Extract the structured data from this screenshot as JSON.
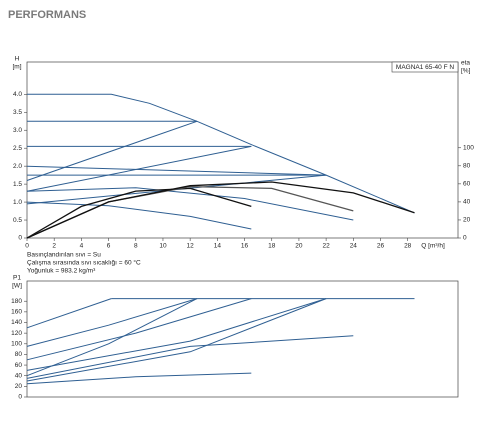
{
  "header": {
    "title": "PERFORMANS"
  },
  "chart_data": [
    {
      "type": "line",
      "y_label": "H",
      "y_unit": "[m]",
      "y2_label": "eta",
      "y2_unit": "[%]",
      "x_label": "Q [m³/h]",
      "legend_text": "MAGNA1 65-40 F N",
      "notes": [
        "Basınçlandırılan sıvı = Su",
        "Çalışma sırasında sıvı sıcaklığı = 60 °C",
        "Yoğunluk = 983.2 kg/m³"
      ],
      "xlim": [
        0,
        31.7
      ],
      "ylim": [
        0,
        4.9
      ],
      "y2lim": [
        0,
        195
      ],
      "xticks": [
        0,
        2,
        4,
        6,
        8,
        10,
        12,
        14,
        16,
        18,
        20,
        22,
        24,
        26,
        28
      ],
      "yticks": [
        0,
        0.5,
        {
          "value": 1,
          "label": "1.0"
        },
        1.5,
        {
          "value": 2,
          "label": "2.0"
        },
        2.5,
        {
          "value": 3,
          "label": "3.0"
        },
        3.5,
        {
          "value": 4,
          "label": "4.0"
        }
      ],
      "y2ticks": [
        0,
        20,
        40,
        60,
        80,
        100
      ],
      "series": [
        {
          "color": "#2f5f92",
          "x": [
            0,
            6.2,
            9,
            12.5,
            16.5,
            22,
            28.5
          ],
          "values": [
            4.0,
            4.0,
            3.75,
            3.25,
            2.6,
            1.75,
            0.7
          ]
        },
        {
          "color": "#2f5f92",
          "x": [
            0,
            12.5
          ],
          "values": [
            3.25,
            3.25
          ]
        },
        {
          "color": "#2f5f92",
          "x": [
            0,
            16.5
          ],
          "values": [
            2.55,
            2.55
          ]
        },
        {
          "color": "#2f5f92",
          "x": [
            0,
            22
          ],
          "values": [
            1.75,
            1.75
          ]
        },
        {
          "color": "#2f5f92",
          "x": [
            0,
            22
          ],
          "values": [
            2.0,
            1.75
          ]
        },
        {
          "color": "#2f5f92",
          "x": [
            0,
            12.5
          ],
          "values": [
            1.6,
            3.25
          ]
        },
        {
          "color": "#2f5f92",
          "x": [
            0,
            16.5
          ],
          "values": [
            1.3,
            2.55
          ]
        },
        {
          "color": "#2f5f92",
          "x": [
            0,
            22
          ],
          "values": [
            0.95,
            1.75
          ]
        },
        {
          "color": "#2f5f92",
          "x": [
            0,
            6,
            12,
            16.5
          ],
          "values": [
            1.0,
            0.9,
            0.6,
            0.25
          ]
        },
        {
          "color": "#2f5f92",
          "x": [
            0,
            8,
            16,
            24
          ],
          "values": [
            1.3,
            1.4,
            1.1,
            0.5
          ]
        },
        {
          "color": "#111111",
          "axis": "y2",
          "x": [
            0,
            4,
            8,
            12,
            16.5
          ],
          "values": [
            0,
            35,
            52,
            55,
            35
          ]
        },
        {
          "color": "#555555",
          "axis": "y2",
          "x": [
            0,
            6,
            12,
            18,
            24
          ],
          "values": [
            0,
            40,
            57,
            55,
            30
          ]
        },
        {
          "color": "#111111",
          "axis": "y2",
          "x": [
            0,
            6,
            12,
            18,
            24,
            28.5
          ],
          "values": [
            0,
            40,
            58,
            62,
            50,
            28
          ]
        }
      ]
    },
    {
      "type": "line",
      "y_label": "P1",
      "y_unit": "[W]",
      "xlim": [
        0,
        31.7
      ],
      "ylim": [
        0,
        218
      ],
      "yticks": [
        0,
        20,
        40,
        60,
        80,
        100,
        120,
        140,
        160,
        180
      ],
      "series": [
        {
          "color": "#2f5f92",
          "x": [
            6.2,
            28.5
          ],
          "values": [
            185,
            185
          ]
        },
        {
          "color": "#2f5f92",
          "x": [
            0,
            6.2
          ],
          "values": [
            130,
            185
          ]
        },
        {
          "color": "#2f5f92",
          "x": [
            0,
            6,
            12.5
          ],
          "values": [
            95,
            135,
            185
          ]
        },
        {
          "color": "#2f5f92",
          "x": [
            0,
            8,
            16.5
          ],
          "values": [
            70,
            120,
            185
          ]
        },
        {
          "color": "#2f5f92",
          "x": [
            0,
            12,
            22
          ],
          "values": [
            50,
            105,
            185
          ]
        },
        {
          "color": "#2f5f92",
          "x": [
            0,
            12,
            22
          ],
          "values": [
            30,
            85,
            185
          ]
        },
        {
          "color": "#2f5f92",
          "x": [
            0,
            12,
            24
          ],
          "values": [
            35,
            95,
            115
          ]
        },
        {
          "color": "#2f5f92",
          "x": [
            0,
            8,
            16.5
          ],
          "values": [
            25,
            38,
            45
          ]
        },
        {
          "color": "#2f5f92",
          "x": [
            0,
            6,
            12.5
          ],
          "values": [
            40,
            100,
            185
          ]
        }
      ]
    }
  ]
}
